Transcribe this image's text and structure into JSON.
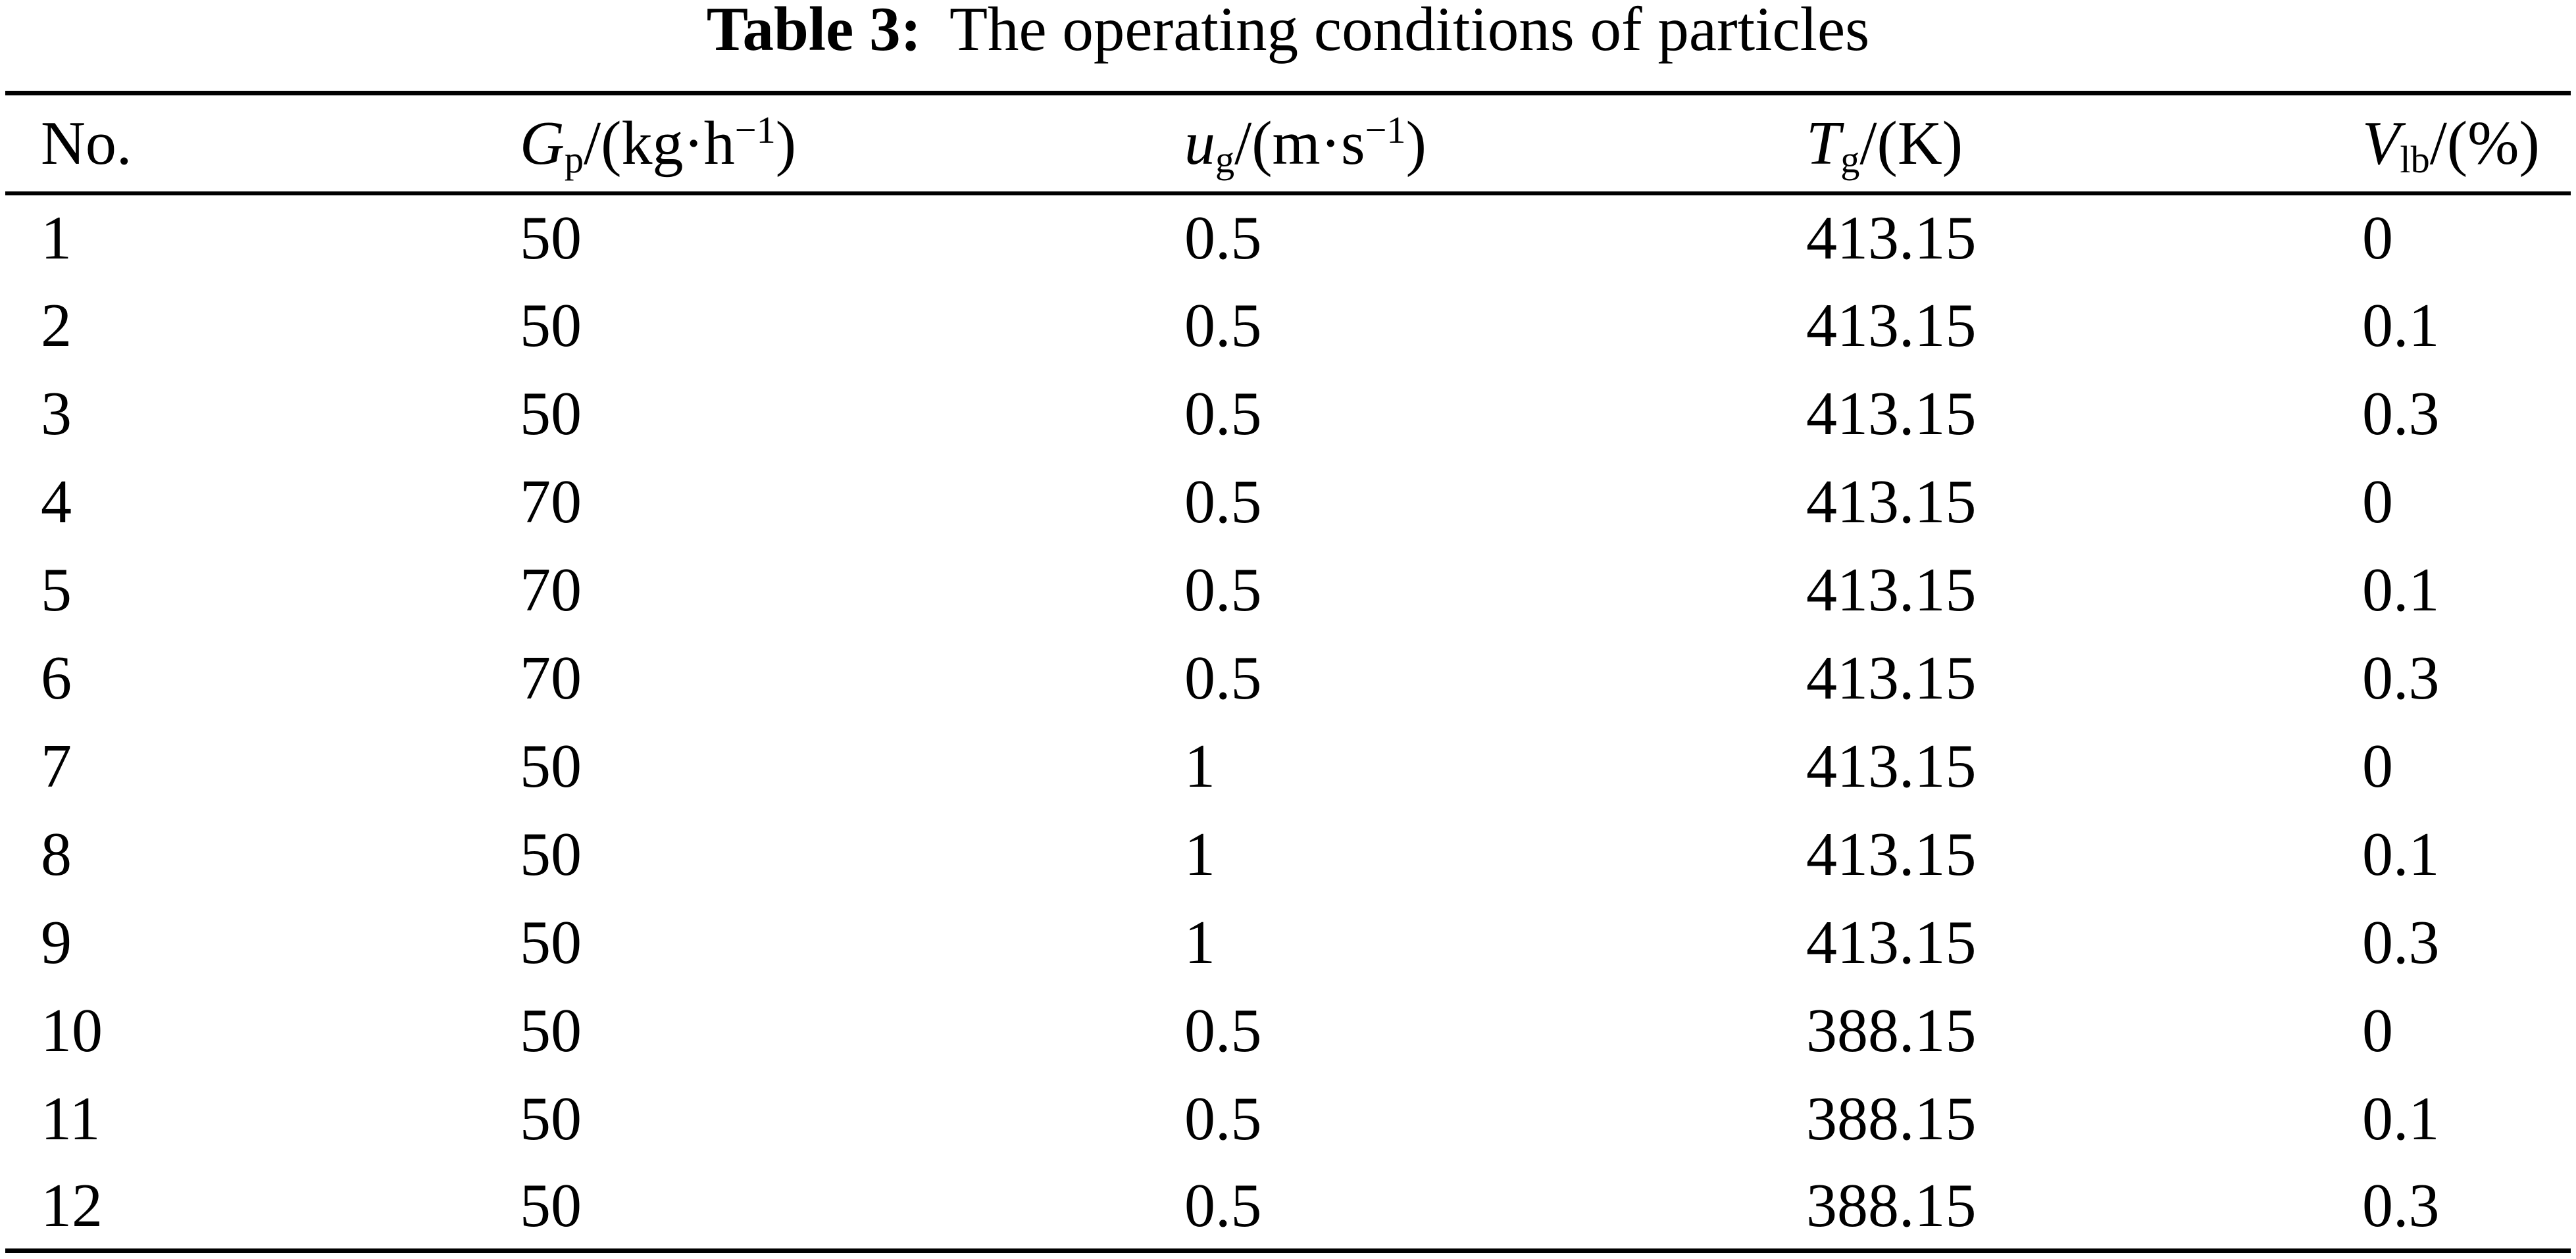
{
  "caption": {
    "label": "Table 3:",
    "text": "The operating conditions of particles"
  },
  "table": {
    "headers": [
      {
        "label": "No."
      },
      {
        "symbol": "G",
        "subscript": "p",
        "unit_prefix": "/(kg·h",
        "superscript": "−1",
        "unit_suffix": ")"
      },
      {
        "symbol": "u",
        "subscript": "g",
        "unit_prefix": "/(m·s",
        "superscript": "−1",
        "unit_suffix": ")"
      },
      {
        "symbol": "T",
        "subscript": "g",
        "unit_prefix": "/(K)",
        "superscript": "",
        "unit_suffix": ""
      },
      {
        "symbol": "V",
        "subscript": "lb",
        "unit_prefix": "/(%)",
        "superscript": "",
        "unit_suffix": ""
      }
    ],
    "rows": [
      [
        "1",
        "50",
        "0.5",
        "413.15",
        "0"
      ],
      [
        "2",
        "50",
        "0.5",
        "413.15",
        "0.1"
      ],
      [
        "3",
        "50",
        "0.5",
        "413.15",
        "0.3"
      ],
      [
        "4",
        "70",
        "0.5",
        "413.15",
        "0"
      ],
      [
        "5",
        "70",
        "0.5",
        "413.15",
        "0.1"
      ],
      [
        "6",
        "70",
        "0.5",
        "413.15",
        "0.3"
      ],
      [
        "7",
        "50",
        "1",
        "413.15",
        "0"
      ],
      [
        "8",
        "50",
        "1",
        "413.15",
        "0.1"
      ],
      [
        "9",
        "50",
        "1",
        "413.15",
        "0.3"
      ],
      [
        "10",
        "50",
        "0.5",
        "388.15",
        "0"
      ],
      [
        "11",
        "50",
        "0.5",
        "388.15",
        "0.1"
      ],
      [
        "12",
        "50",
        "0.5",
        "388.15",
        "0.3"
      ]
    ]
  },
  "colors": {
    "text": "#000000",
    "background": "#ffffff",
    "rule": "#000000"
  }
}
